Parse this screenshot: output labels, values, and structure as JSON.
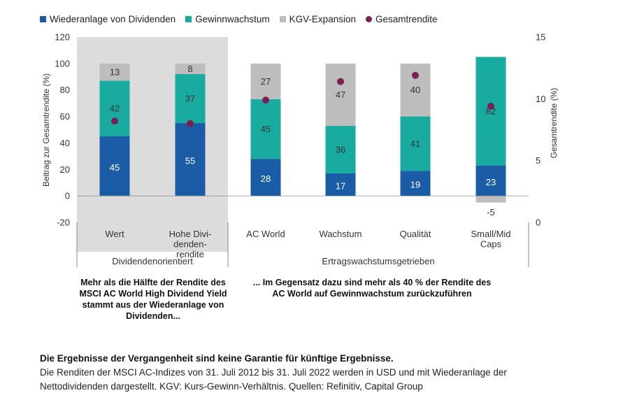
{
  "legend": [
    {
      "label": "Wiederanlage von Dividenden",
      "color": "#1a5da6",
      "kind": "square"
    },
    {
      "label": "Gewinnwachstum",
      "color": "#19aaa0",
      "kind": "square"
    },
    {
      "label": "KGV-Expansion",
      "color": "#bdbdbd",
      "kind": "square"
    },
    {
      "label": "Gesamtrendite",
      "color": "#7b1f55",
      "kind": "dot"
    }
  ],
  "chart_data": {
    "type": "bar",
    "stacked": true,
    "categories": [
      "Wert",
      "Hohe Divi-\ndenden-\nrendite",
      "AC World",
      "Wachstum",
      "Qualität",
      "Small/Mid\nCaps"
    ],
    "series": [
      {
        "name": "Wiederanlage von Dividenden",
        "color": "#1a5da6",
        "values": [
          45,
          55,
          28,
          17,
          19,
          23
        ]
      },
      {
        "name": "Gewinnwachstum",
        "color": "#19aaa0",
        "values": [
          42,
          37,
          45,
          36,
          41,
          82
        ]
      },
      {
        "name": "KGV-Expansion",
        "color": "#bdbdbd",
        "values": [
          13,
          8,
          27,
          47,
          40,
          -5
        ]
      }
    ],
    "total_return": {
      "name": "Gesamtrendite",
      "axis": "right",
      "color": "#7b1f55",
      "values": [
        8.2,
        8.0,
        9.9,
        11.4,
        11.9,
        9.4
      ]
    },
    "ylabel": "Beitrag zur Gesamtrendite (%)",
    "ylabel_right": "Gesamtrendite (%)",
    "ylim": [
      -20,
      120
    ],
    "yticks": [
      -20,
      0,
      20,
      40,
      60,
      80,
      100,
      120
    ],
    "ylim_right": [
      0,
      15
    ],
    "yticks_right": [
      0,
      5,
      10,
      15
    ],
    "groups": [
      {
        "label": "Dividendenorientiert",
        "highlighted": true
      },
      {
        "label": "Ertragswachstumsgetrieben",
        "highlighted": false
      }
    ]
  },
  "captions": {
    "left": "Mehr als die Hälfte der Rendite des MSCI AC World High Dividend Yield stammt aus der Wiederanlage von Dividenden...",
    "right": "... Im Gegensatz dazu sind mehr als 40 % der Rendite des AC World auf Gewinnwachstum zurückzuführen"
  },
  "footer": {
    "disclaimer": "Die Ergebnisse der Vergangenheit sind keine Garantie für künftige Ergebnisse.",
    "note": "Die Renditen der MSCI AC-Indizes von 31. Juli 2012 bis 31. Juli 2022 werden in USD und mit Wiederanlage der Nettodividenden dargestellt. KGV: Kurs-Gewinn-Verhältnis. Quellen: Refinitiv, Capital Group"
  }
}
